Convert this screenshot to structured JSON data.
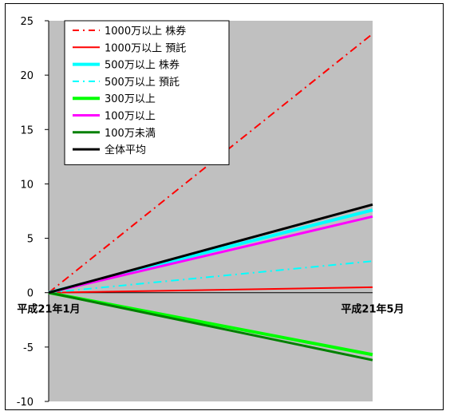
{
  "chart_data": {
    "type": "line",
    "categories": [
      "平成21年1月",
      "平成21年5月"
    ],
    "ylim": [
      -10,
      25
    ],
    "yticks": [
      -10,
      -5,
      0,
      5,
      10,
      15,
      20,
      25
    ],
    "plot_background": "#c0c0c0",
    "legend_position": "top-left",
    "series": [
      {
        "name": "1000万以上  株券",
        "values": [
          0,
          23.8
        ],
        "color": "#ff0000",
        "dash": "dashdot",
        "width": 2
      },
      {
        "name": "1000万以上  預託",
        "values": [
          0,
          0.5
        ],
        "color": "#ff0000",
        "dash": "solid",
        "width": 2
      },
      {
        "name": "500万以上    株券",
        "values": [
          0,
          7.6
        ],
        "color": "#00ffff",
        "dash": "solid",
        "width": 4
      },
      {
        "name": "500万以上     預託",
        "values": [
          0,
          2.9
        ],
        "color": "#00ffff",
        "dash": "dashdot",
        "width": 2
      },
      {
        "name": "300万以上",
        "values": [
          0,
          -5.7
        ],
        "color": "#00ff00",
        "dash": "solid",
        "width": 4
      },
      {
        "name": "100万以上",
        "values": [
          0,
          7.0
        ],
        "color": "#ff00ff",
        "dash": "solid",
        "width": 3
      },
      {
        "name": "100万未満",
        "values": [
          0,
          -6.2
        ],
        "color": "#008000",
        "dash": "solid",
        "width": 3
      },
      {
        "name": "全体平均",
        "values": [
          0,
          8.1
        ],
        "color": "#000000",
        "dash": "solid",
        "width": 3
      }
    ]
  }
}
